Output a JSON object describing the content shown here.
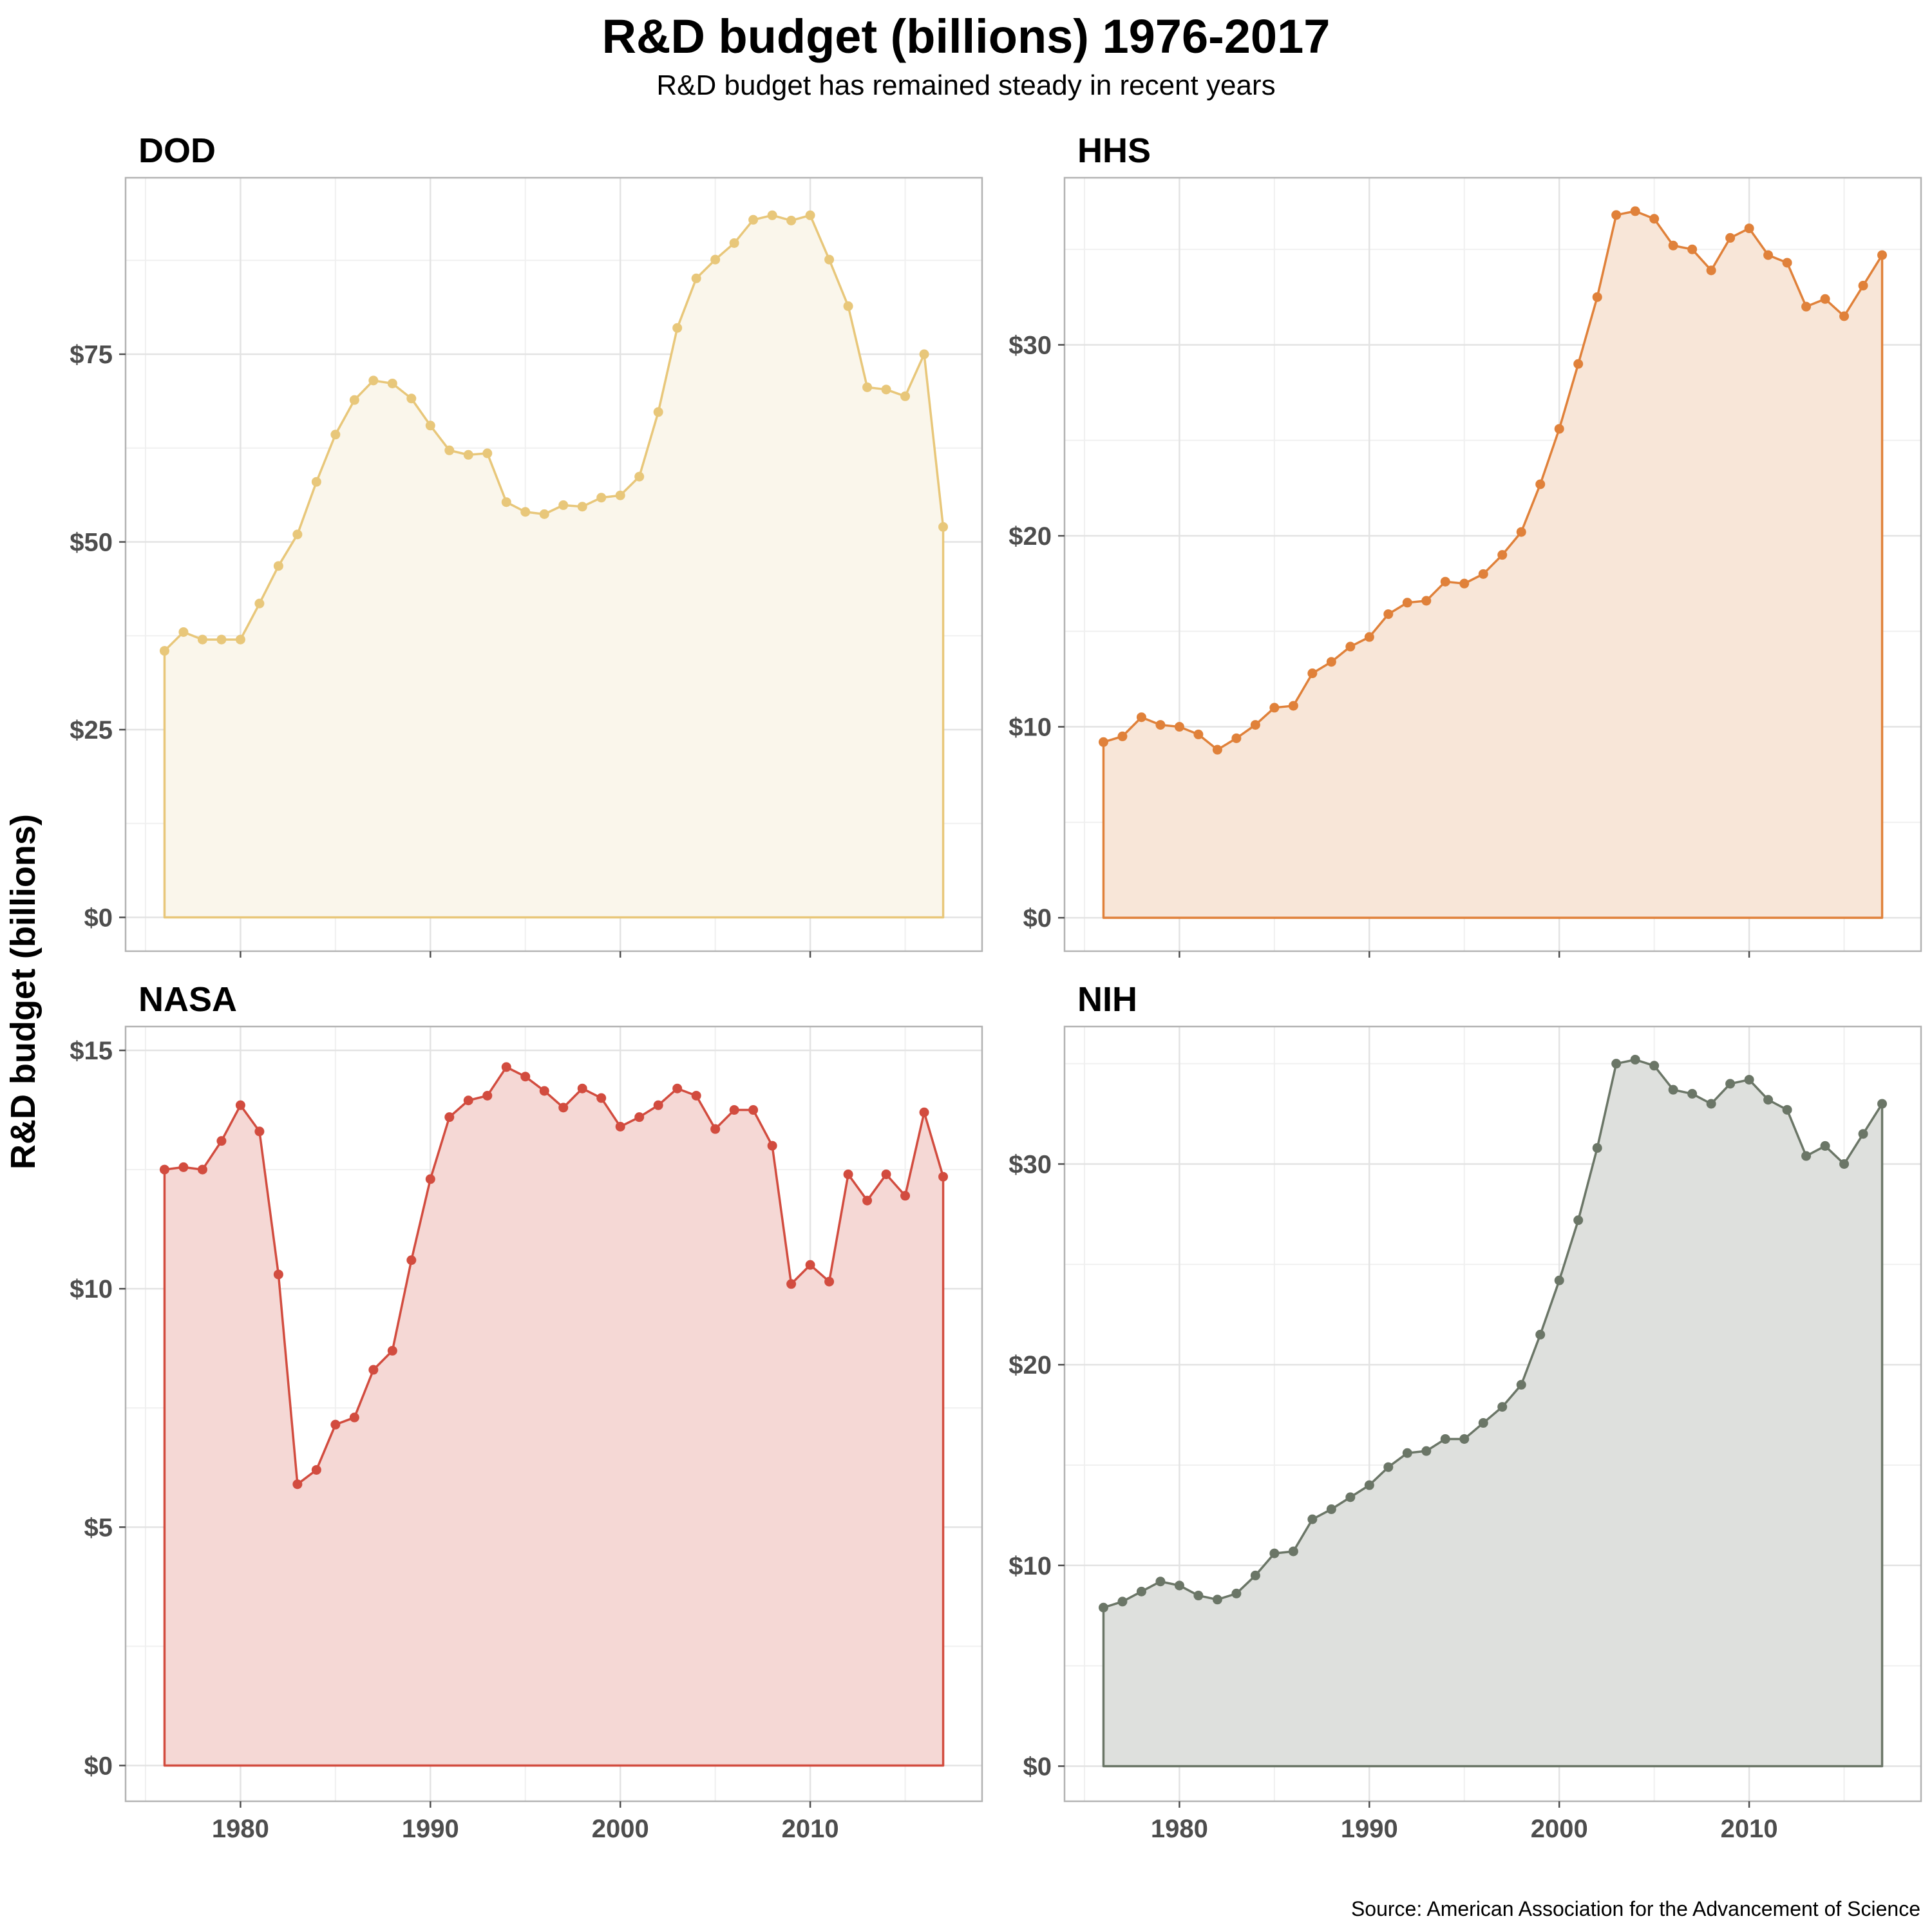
{
  "title": "R&D budget (billions) 1976-2017",
  "subtitle": "R&D budget has remained steady in recent years",
  "ylabel": "R&D budget (billions)",
  "source": "Source: American Association for the Advancement of Science",
  "chart_data": [
    {
      "type": "area",
      "title": "DOD",
      "color": "#E8C77A",
      "fill": "#FAF6EB",
      "x": [
        1976,
        1977,
        1978,
        1979,
        1980,
        1981,
        1982,
        1983,
        1984,
        1985,
        1986,
        1987,
        1988,
        1989,
        1990,
        1991,
        1992,
        1993,
        1994,
        1995,
        1996,
        1997,
        1998,
        1999,
        2000,
        2001,
        2002,
        2003,
        2004,
        2005,
        2006,
        2007,
        2008,
        2009,
        2010,
        2011,
        2012,
        2013,
        2014,
        2015,
        2016,
        2017
      ],
      "values": [
        35.5,
        38.0,
        37.0,
        37.0,
        37.0,
        41.8,
        46.8,
        51.0,
        58.0,
        64.3,
        68.9,
        71.5,
        71.1,
        69.1,
        65.5,
        62.2,
        61.6,
        61.8,
        55.3,
        54.0,
        53.7,
        54.9,
        54.7,
        55.9,
        56.2,
        58.7,
        67.3,
        78.5,
        85.1,
        87.6,
        89.8,
        92.9,
        93.5,
        92.8,
        93.5,
        87.6,
        81.4,
        70.6,
        70.3,
        69.4,
        75.0,
        52.0
      ],
      "ylim": [
        -4.5,
        98.5
      ],
      "yticks": [
        0,
        25,
        50,
        75
      ],
      "ytick_labels": [
        "$0",
        "$25",
        "$50",
        "$75"
      ],
      "xticks": [
        1980,
        1990,
        2000,
        2010
      ],
      "xtick_labels": [
        "1980",
        "1990",
        "2000",
        "2010"
      ]
    },
    {
      "type": "area",
      "title": "HHS",
      "color": "#E0813A",
      "fill": "#F8E6D8",
      "x": [
        1976,
        1977,
        1978,
        1979,
        1980,
        1981,
        1982,
        1983,
        1984,
        1985,
        1986,
        1987,
        1988,
        1989,
        1990,
        1991,
        1992,
        1993,
        1994,
        1995,
        1996,
        1997,
        1998,
        1999,
        2000,
        2001,
        2002,
        2003,
        2004,
        2005,
        2006,
        2007,
        2008,
        2009,
        2010,
        2011,
        2012,
        2013,
        2014,
        2015,
        2016,
        2017
      ],
      "values": [
        9.2,
        9.5,
        10.5,
        10.1,
        10.0,
        9.6,
        8.8,
        9.4,
        10.1,
        11.0,
        11.1,
        12.8,
        13.4,
        14.2,
        14.7,
        15.9,
        16.5,
        16.6,
        17.6,
        17.5,
        18.0,
        19.0,
        20.2,
        22.7,
        25.6,
        29.0,
        32.5,
        36.8,
        37.0,
        36.6,
        35.2,
        35.0,
        33.9,
        35.6,
        36.1,
        34.7,
        34.3,
        32.0,
        32.4,
        31.5,
        33.1,
        34.7
      ],
      "ylim": [
        -1.75,
        38.75
      ],
      "yticks": [
        0,
        10,
        20,
        30
      ],
      "ytick_labels": [
        "$0",
        "$10",
        "$20",
        "$30"
      ],
      "xticks": [
        1980,
        1990,
        2000,
        2010
      ],
      "xtick_labels": [
        "1980",
        "1990",
        "2000",
        "2010"
      ]
    },
    {
      "type": "area",
      "title": "NASA",
      "color": "#D24C3F",
      "fill": "#F5D8D5",
      "x": [
        1976,
        1977,
        1978,
        1979,
        1980,
        1981,
        1982,
        1983,
        1984,
        1985,
        1986,
        1987,
        1988,
        1989,
        1990,
        1991,
        1992,
        1993,
        1994,
        1995,
        1996,
        1997,
        1998,
        1999,
        2000,
        2001,
        2002,
        2003,
        2004,
        2005,
        2006,
        2007,
        2008,
        2009,
        2010,
        2011,
        2012,
        2013,
        2014,
        2015,
        2016,
        2017
      ],
      "values": [
        12.5,
        12.55,
        12.5,
        13.1,
        13.85,
        13.3,
        10.3,
        5.9,
        6.2,
        7.15,
        7.3,
        8.3,
        8.7,
        10.6,
        12.3,
        13.6,
        13.95,
        14.05,
        14.65,
        14.45,
        14.15,
        13.8,
        14.2,
        14.0,
        13.4,
        13.6,
        13.85,
        14.2,
        14.05,
        13.35,
        13.75,
        13.75,
        13.0,
        10.1,
        10.5,
        10.15,
        12.4,
        11.85,
        12.4,
        11.95,
        13.7,
        12.35
      ],
      "ylim": [
        -0.75,
        15.5
      ],
      "yticks": [
        0,
        5,
        10,
        15
      ],
      "ytick_labels": [
        "$0",
        "$5",
        "$10",
        "$15"
      ],
      "xticks": [
        1980,
        1990,
        2000,
        2010
      ],
      "xtick_labels": [
        "1980",
        "1990",
        "2000",
        "2010"
      ]
    },
    {
      "type": "area",
      "title": "NIH",
      "color": "#6B7667",
      "fill": "#DEE0DD",
      "x": [
        1976,
        1977,
        1978,
        1979,
        1980,
        1981,
        1982,
        1983,
        1984,
        1985,
        1986,
        1987,
        1988,
        1989,
        1990,
        1991,
        1992,
        1993,
        1994,
        1995,
        1996,
        1997,
        1998,
        1999,
        2000,
        2001,
        2002,
        2003,
        2004,
        2005,
        2006,
        2007,
        2008,
        2009,
        2010,
        2011,
        2012,
        2013,
        2014,
        2015,
        2016,
        2017
      ],
      "values": [
        7.9,
        8.2,
        8.7,
        9.2,
        9.0,
        8.5,
        8.3,
        8.6,
        9.5,
        10.6,
        10.7,
        12.3,
        12.8,
        13.4,
        14.0,
        14.9,
        15.6,
        15.7,
        16.3,
        16.3,
        17.1,
        17.9,
        19.0,
        21.5,
        24.2,
        27.2,
        30.8,
        35.0,
        35.2,
        34.9,
        33.7,
        33.5,
        33.0,
        34.0,
        34.2,
        33.2,
        32.7,
        30.4,
        30.9,
        30.0,
        31.5,
        33.0
      ],
      "ylim": [
        -1.75,
        36.85
      ],
      "yticks": [
        0,
        10,
        20,
        30
      ],
      "ytick_labels": [
        "$0",
        "$10",
        "$20",
        "$30"
      ],
      "xticks": [
        1980,
        1990,
        2000,
        2010
      ],
      "xtick_labels": [
        "1980",
        "1990",
        "2000",
        "2010"
      ]
    }
  ]
}
